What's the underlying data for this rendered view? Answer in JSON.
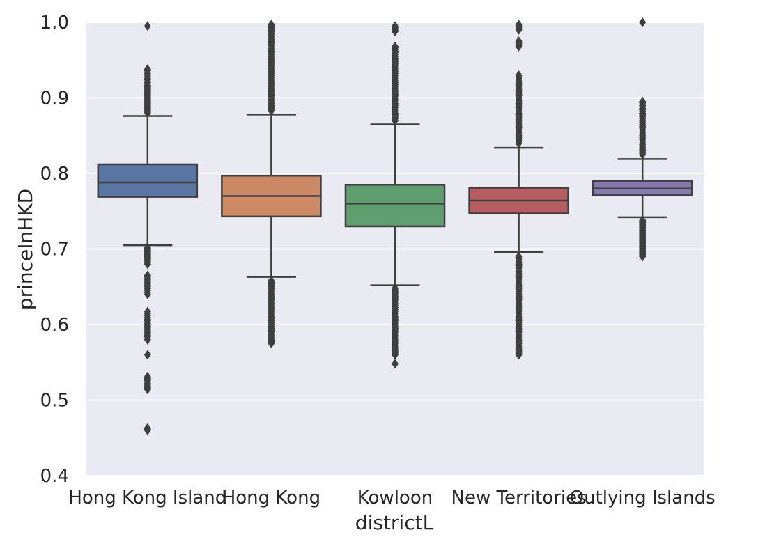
{
  "chart_data": {
    "type": "box",
    "title": "",
    "xlabel": "districtL",
    "ylabel": "princeInHKD",
    "ylim": [
      0.4,
      1.0
    ],
    "yticks": [
      "0.4",
      "0.5",
      "0.6",
      "0.7",
      "0.8",
      "0.9",
      "1.0"
    ],
    "grid": true,
    "background": "#EAEAF2",
    "categories": [
      "Hong Kong Island",
      "Hong Kong",
      "Kowloon",
      "New Territories",
      "Outlying Islands"
    ],
    "boxes": [
      {
        "category": "Hong Kong Island",
        "whisker_low": 0.705,
        "q1": 0.769,
        "median": 0.788,
        "q3": 0.812,
        "whisker_high": 0.876,
        "outliers_low": [
          0.46,
          0.463,
          0.514,
          0.519,
          0.526,
          0.531,
          0.56,
          0.58,
          0.588,
          0.594,
          0.6,
          0.607,
          0.617,
          0.64,
          0.65,
          0.657,
          0.665,
          0.68,
          0.686,
          0.69,
          0.694,
          0.698,
          0.702
        ],
        "outliers_high": [
          0.995,
          0.938,
          0.93,
          0.922,
          0.915,
          0.91,
          0.905,
          0.9,
          0.895,
          0.89,
          0.885,
          0.88
        ]
      },
      {
        "category": "Hong Kong",
        "whisker_low": 0.663,
        "q1": 0.743,
        "median": 0.77,
        "q3": 0.797,
        "whisker_high": 0.878,
        "outliers_low": [
          0.575,
          0.58,
          0.59,
          0.6,
          0.61,
          0.62,
          0.63,
          0.64,
          0.65,
          0.658
        ],
        "outliers_high": [
          0.997,
          0.99,
          0.98,
          0.97,
          0.96,
          0.95,
          0.94,
          0.93,
          0.92,
          0.91,
          0.9,
          0.89,
          0.883
        ]
      },
      {
        "category": "Kowloon",
        "whisker_low": 0.652,
        "q1": 0.73,
        "median": 0.76,
        "q3": 0.785,
        "whisker_high": 0.865,
        "outliers_low": [
          0.548,
          0.56,
          0.57,
          0.58,
          0.59,
          0.6,
          0.61,
          0.62,
          0.63,
          0.64,
          0.648
        ],
        "outliers_high": [
          0.995,
          0.988,
          0.968,
          0.96,
          0.95,
          0.94,
          0.93,
          0.92,
          0.91,
          0.9,
          0.89,
          0.88,
          0.87
        ]
      },
      {
        "category": "New Territories",
        "whisker_low": 0.696,
        "q1": 0.747,
        "median": 0.764,
        "q3": 0.781,
        "whisker_high": 0.834,
        "outliers_low": [
          0.56,
          0.57,
          0.58,
          0.59,
          0.6,
          0.61,
          0.62,
          0.63,
          0.64,
          0.65,
          0.66,
          0.67,
          0.68,
          0.69
        ],
        "outliers_high": [
          0.997,
          0.99,
          0.975,
          0.968,
          0.93,
          0.92,
          0.91,
          0.9,
          0.89,
          0.88,
          0.87,
          0.86,
          0.85,
          0.84
        ]
      },
      {
        "category": "Outlying Islands",
        "whisker_low": 0.742,
        "q1": 0.771,
        "median": 0.78,
        "q3": 0.79,
        "whisker_high": 0.819,
        "outliers_low": [
          0.69,
          0.695,
          0.7,
          0.705,
          0.71,
          0.715,
          0.72,
          0.725,
          0.73,
          0.735,
          0.738
        ],
        "outliers_high": [
          1.0,
          0.895,
          0.888,
          0.88,
          0.87,
          0.86,
          0.85,
          0.84,
          0.832,
          0.825
        ]
      }
    ],
    "colors": [
      "#5875A4",
      "#CC8963",
      "#5F9E6E",
      "#B55D60",
      "#857AAB"
    ],
    "line_color": "#3F3F3F"
  }
}
